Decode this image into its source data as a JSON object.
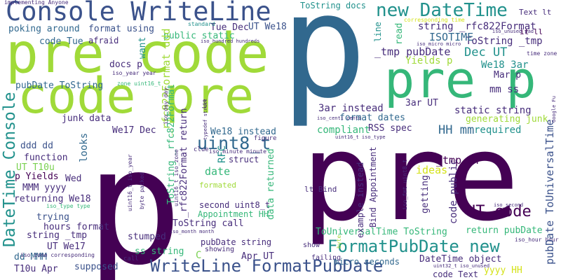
{
  "palette": {
    "dark_purple": "#440154",
    "indigo": "#3b528b",
    "blue": "#31688e",
    "teal": "#21918c",
    "green": "#35b779",
    "light_green": "#7ad151",
    "yellow_green": "#a0da39",
    "yellow": "#d4e21a",
    "purple": "#472d7b"
  },
  "words": [
    {
      "text": "p",
      "color": "#440154"
    },
    {
      "text": "pre",
      "color": "#440154"
    },
    {
      "text": "p",
      "color": "#31688e"
    },
    {
      "text": "pre code",
      "color": "#a0da39"
    },
    {
      "text": "code pre",
      "color": "#a0da39"
    },
    {
      "text": "pre p",
      "color": "#35b779"
    },
    {
      "text": "Console WriteLine",
      "color": "#3b528b"
    },
    {
      "text": "new DateTime",
      "color": "#21918c"
    },
    {
      "text": "WriteLine FormatPubDate",
      "color": "#3b528b"
    },
    {
      "text": "FormatPubDate new",
      "color": "#21918c"
    },
    {
      "text": "DateTime Console",
      "color": "#21918c"
    },
    {
      "text": "uint8_t",
      "color": "#31688e"
    },
    {
      "text": "UT code",
      "color": "#440154"
    },
    {
      "text": "string _rfc822Format",
      "color": "#472d7b"
    },
    {
      "text": "ToString _tmp",
      "color": "#472d7b"
    },
    {
      "text": "Dec UT",
      "color": "#21918c"
    },
    {
      "text": "Yields p",
      "color": "#a0da39"
    },
    {
      "text": "ISOTIME",
      "color": "#31688e"
    },
    {
      "text": "_tmp pubDate",
      "color": "#472d7b"
    },
    {
      "text": "We18 3ar",
      "color": "#21918c"
    },
    {
      "text": "Mar p",
      "color": "#472d7b"
    },
    {
      "text": "mm ss",
      "color": "#472d7b"
    },
    {
      "text": "HH mm",
      "color": "#31688e"
    },
    {
      "text": "3ar instead",
      "color": "#472d7b"
    },
    {
      "text": "format dates",
      "color": "#31688e"
    },
    {
      "text": "static string",
      "color": "#472d7b"
    },
    {
      "text": "RSS spec",
      "color": "#472d7b"
    },
    {
      "text": "generating junk",
      "color": "#a0da39"
    },
    {
      "text": "required",
      "color": "#21918c"
    },
    {
      "text": "compliant",
      "color": "#35b779"
    },
    {
      "text": "3ar UT",
      "color": "#472d7b"
    },
    {
      "text": "ToString docs",
      "color": "#21918c"
    },
    {
      "text": "Tue Dec",
      "color": "#472d7b"
    },
    {
      "text": "UT We18",
      "color": "#3b528b"
    },
    {
      "text": "public static",
      "color": "#35b779"
    },
    {
      "text": "poking around",
      "color": "#31688e"
    },
    {
      "text": "format using",
      "color": "#3b528b"
    },
    {
      "text": "code Tue",
      "color": "#31688e"
    },
    {
      "text": "afraid",
      "color": "#472d7b"
    },
    {
      "text": "pubDate ToString",
      "color": "#31688e"
    },
    {
      "text": "docs p",
      "color": "#472d7b"
    },
    {
      "text": "_rfc822Format ddd",
      "color": "#a0da39"
    },
    {
      "text": "want",
      "color": "#21918c"
    },
    {
      "text": "junk data",
      "color": "#472d7b"
    },
    {
      "text": "We17 Dec",
      "color": "#472d7b"
    },
    {
      "text": "We18 instead",
      "color": "#31688e"
    },
    {
      "text": "ddd dd",
      "color": "#3b528b"
    },
    {
      "text": "function",
      "color": "#472d7b"
    },
    {
      "text": "UT T10u",
      "color": "#7ad151"
    },
    {
      "text": "p Yields",
      "color": "#440154"
    },
    {
      "text": "MMM yyyy",
      "color": "#472d7b"
    },
    {
      "text": "returning We18",
      "color": "#472d7b"
    },
    {
      "text": "Wed",
      "color": "#472d7b"
    },
    {
      "text": "trying",
      "color": "#3b528b"
    },
    {
      "text": "string _tmp",
      "color": "#472d7b"
    },
    {
      "text": "hours format",
      "color": "#472d7b"
    },
    {
      "text": "UT We17",
      "color": "#472d7b"
    },
    {
      "text": "dd MMM",
      "color": "#31688e"
    },
    {
      "text": "T10u Apr",
      "color": "#472d7b"
    },
    {
      "text": "supposed",
      "color": "#3b528b"
    },
    {
      "text": "ss string",
      "color": "#35b779"
    },
    {
      "text": "stumped",
      "color": "#472d7b"
    },
    {
      "text": "ToString call",
      "color": "#472d7b"
    },
    {
      "text": "pubDate string",
      "color": "#472d7b"
    },
    {
      "text": "showing",
      "color": "#472d7b"
    },
    {
      "text": "Apr UT",
      "color": "#472d7b"
    },
    {
      "text": "Appointment HH",
      "color": "#35b779"
    },
    {
      "text": "second uint8_t",
      "color": "#472d7b"
    },
    {
      "text": "formated",
      "color": "#a0da39"
    },
    {
      "text": "date",
      "color": "#35b779"
    },
    {
      "text": "looks",
      "color": "#31688e"
    },
    {
      "text": "ToString _rfc822Format",
      "color": "#35b779"
    },
    {
      "text": "_rfc822Format return",
      "color": "#472d7b"
    },
    {
      "text": "RFC",
      "color": "#21918c"
    },
    {
      "text": "struct",
      "color": "#472d7b"
    },
    {
      "text": "data returned",
      "color": "#35b779"
    },
    {
      "text": "lt Bind",
      "color": "#472d7b"
    },
    {
      "text": "example instead",
      "color": "#472d7b"
    },
    {
      "text": "Bind Appointment",
      "color": "#472d7b"
    },
    {
      "text": "ideas",
      "color": "#d4e21a"
    },
    {
      "text": "getting",
      "color": "#472d7b"
    },
    {
      "text": "_tmp UT",
      "color": "#440154"
    },
    {
      "text": "code public",
      "color": "#472d7b"
    },
    {
      "text": "return pubDate",
      "color": "#35b779"
    },
    {
      "text": "pubDate ToUniversalTime",
      "color": "#3b528b"
    },
    {
      "text": "ToUniversalTime ToString",
      "color": "#35b779"
    },
    {
      "text": "DateTime object",
      "color": "#472d7b"
    },
    {
      "text": "micro seconds",
      "color": "#31688e"
    },
    {
      "text": "code Text",
      "color": "#472d7b"
    },
    {
      "text": "yyyy HH",
      "color": "#d4e21a"
    },
    {
      "text": "Text lt",
      "color": "#472d7b"
    },
    {
      "text": "it ll",
      "color": "#440154"
    },
    {
      "text": "line",
      "color": "#21918c"
    },
    {
      "text": "read",
      "color": "#35b779"
    },
    {
      "text": "show",
      "color": "#472d7b"
    },
    {
      "text": "failing",
      "color": "#472d7b"
    },
    {
      "text": "call",
      "color": "#472d7b"
    },
    {
      "text": "C",
      "color": "#7ad151"
    },
    {
      "text": "clue",
      "color": "#472d7b"
    },
    {
      "text": "iso",
      "color": "#472d7b"
    },
    {
      "text": "byte",
      "color": "#a0da39"
    },
    {
      "text": "figure",
      "color": "#472d7b"
    },
    {
      "text": "standard",
      "color": "#21918c"
    },
    {
      "text": "implementing Anyone",
      "color": "#472d7b"
    },
    {
      "text": "corresponding time",
      "color": "#d4e21a"
    },
    {
      "text": "iso_unused pad",
      "color": "#472d7b"
    },
    {
      "text": "iso_hundred hundreds",
      "color": "#472d7b"
    },
    {
      "text": "iso_micro micro",
      "color": "#472d7b"
    },
    {
      "text": "time zone",
      "color": "#472d7b"
    },
    {
      "text": "iso_year year",
      "color": "#472d7b"
    },
    {
      "text": "zone uint16_t",
      "color": "#35b779"
    },
    {
      "text": "iso_day day",
      "color": "#472d7b"
    },
    {
      "text": "iso_centi centi",
      "color": "#472d7b"
    },
    {
      "text": "uint16_t iso_type",
      "color": "#472d7b"
    },
    {
      "text": "iso_minute minute",
      "color": "#472d7b"
    },
    {
      "text": "uint16_t iso_year",
      "color": "#472d7b"
    },
    {
      "text": "byte packed",
      "color": "#472d7b"
    },
    {
      "text": "uint16_t iso_zone",
      "color": "#472d7b"
    },
    {
      "text": "typedef struct",
      "color": "#472d7b"
    },
    {
      "text": "iso_type type",
      "color": "#35b779"
    },
    {
      "text": "iso_zone corresponding",
      "color": "#472d7b"
    },
    {
      "text": "iso_month month",
      "color": "#472d7b"
    },
    {
      "text": "iso_fmt uint8_t",
      "color": "#472d7b"
    },
    {
      "text": "iso_second",
      "color": "#472d7b"
    },
    {
      "text": "iso_hour hour",
      "color": "#472d7b"
    },
    {
      "text": "uint32_t iso_unused",
      "color": "#472d7b"
    },
    {
      "text": "Google Fu",
      "color": "#472d7b"
    }
  ]
}
